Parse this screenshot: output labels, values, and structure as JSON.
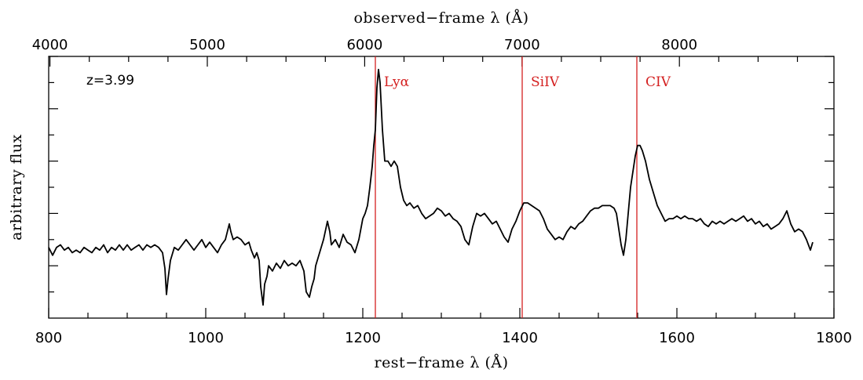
{
  "chart_data": {
    "type": "line",
    "top_axis_label": "observed−frame λ (Å)",
    "xlabel": "rest−frame λ (Å)",
    "ylabel": "arbitrary flux",
    "annotation": "z=3.99",
    "redshift": 3.99,
    "xlim": [
      800,
      1800
    ],
    "ylim": [
      0,
      1
    ],
    "x_ticks": [
      800,
      1000,
      1200,
      1400,
      1600,
      1800
    ],
    "x_tick_labels": [
      "800",
      "1000",
      "1200",
      "1400",
      "1600",
      "1800"
    ],
    "top_ticks": [
      4000,
      5000,
      6000,
      7000,
      8000
    ],
    "top_tick_labels": [
      "4000",
      "5000",
      "6000",
      "7000",
      "8000"
    ],
    "emission_lines": [
      {
        "name": "Lyα",
        "x": 1216
      },
      {
        "name": "SiIV",
        "x": 1403
      },
      {
        "name": "CIV",
        "x": 1549
      }
    ],
    "line_color": "#d42020",
    "spectrum_color": "#000000",
    "series": [
      {
        "x": [
          800,
          805,
          810,
          815,
          820,
          825,
          830,
          835,
          840,
          845,
          850,
          855,
          860,
          865,
          870,
          875,
          880,
          885,
          890,
          895,
          900,
          905,
          910,
          915,
          920,
          925,
          930,
          935,
          940,
          945,
          948,
          950,
          952,
          955,
          958,
          960,
          965,
          970,
          975,
          980,
          985,
          990,
          995,
          1000,
          1005,
          1010,
          1015,
          1020,
          1025,
          1030,
          1032,
          1035,
          1040,
          1045,
          1050,
          1055,
          1058,
          1062,
          1065,
          1068,
          1070,
          1073,
          1075,
          1078,
          1080,
          1085,
          1090,
          1095,
          1100,
          1105,
          1110,
          1115,
          1120,
          1125,
          1128,
          1132,
          1135,
          1138,
          1140,
          1145,
          1150,
          1155,
          1158,
          1160,
          1165,
          1170,
          1175,
          1180,
          1185,
          1190,
          1195,
          1200,
          1203,
          1206,
          1209,
          1212,
          1214,
          1216,
          1218,
          1220,
          1222,
          1225,
          1228,
          1232,
          1236,
          1240,
          1244,
          1248,
          1252,
          1256,
          1260,
          1265,
          1270,
          1275,
          1280,
          1285,
          1290,
          1295,
          1300,
          1305,
          1310,
          1315,
          1320,
          1325,
          1330,
          1335,
          1340,
          1345,
          1350,
          1355,
          1360,
          1365,
          1370,
          1375,
          1380,
          1385,
          1390,
          1395,
          1400,
          1405,
          1410,
          1415,
          1420,
          1425,
          1430,
          1435,
          1440,
          1445,
          1450,
          1455,
          1460,
          1465,
          1470,
          1475,
          1480,
          1485,
          1490,
          1495,
          1500,
          1505,
          1510,
          1515,
          1520,
          1523,
          1526,
          1529,
          1532,
          1535,
          1538,
          1541,
          1544,
          1547,
          1550,
          1553,
          1556,
          1560,
          1565,
          1570,
          1575,
          1580,
          1585,
          1590,
          1595,
          1600,
          1605,
          1610,
          1615,
          1620,
          1625,
          1630,
          1635,
          1640,
          1645,
          1650,
          1655,
          1660,
          1665,
          1670,
          1675,
          1680,
          1685,
          1690,
          1695,
          1700,
          1705,
          1710,
          1715,
          1720,
          1725,
          1730,
          1735,
          1740,
          1745,
          1750,
          1755,
          1760,
          1765,
          1770,
          1773
        ],
        "y": [
          0.27,
          0.24,
          0.27,
          0.28,
          0.26,
          0.27,
          0.25,
          0.26,
          0.25,
          0.27,
          0.26,
          0.25,
          0.27,
          0.26,
          0.28,
          0.25,
          0.27,
          0.26,
          0.28,
          0.26,
          0.28,
          0.26,
          0.27,
          0.28,
          0.26,
          0.28,
          0.27,
          0.28,
          0.27,
          0.25,
          0.19,
          0.09,
          0.15,
          0.22,
          0.25,
          0.27,
          0.26,
          0.28,
          0.3,
          0.28,
          0.26,
          0.28,
          0.3,
          0.27,
          0.29,
          0.27,
          0.25,
          0.28,
          0.3,
          0.36,
          0.33,
          0.3,
          0.31,
          0.3,
          0.28,
          0.29,
          0.26,
          0.23,
          0.25,
          0.22,
          0.12,
          0.05,
          0.13,
          0.16,
          0.2,
          0.18,
          0.21,
          0.19,
          0.22,
          0.2,
          0.21,
          0.2,
          0.22,
          0.18,
          0.1,
          0.08,
          0.12,
          0.15,
          0.2,
          0.25,
          0.3,
          0.37,
          0.33,
          0.28,
          0.3,
          0.27,
          0.32,
          0.29,
          0.28,
          0.25,
          0.3,
          0.38,
          0.4,
          0.43,
          0.5,
          0.58,
          0.66,
          0.72,
          0.88,
          0.95,
          0.9,
          0.72,
          0.6,
          0.6,
          0.58,
          0.6,
          0.58,
          0.5,
          0.45,
          0.43,
          0.44,
          0.42,
          0.43,
          0.4,
          0.38,
          0.39,
          0.4,
          0.42,
          0.41,
          0.39,
          0.4,
          0.38,
          0.37,
          0.35,
          0.3,
          0.28,
          0.35,
          0.4,
          0.39,
          0.4,
          0.38,
          0.36,
          0.37,
          0.34,
          0.31,
          0.29,
          0.34,
          0.37,
          0.41,
          0.44,
          0.44,
          0.43,
          0.42,
          0.41,
          0.38,
          0.34,
          0.32,
          0.3,
          0.31,
          0.3,
          0.33,
          0.35,
          0.34,
          0.36,
          0.37,
          0.39,
          0.41,
          0.42,
          0.42,
          0.43,
          0.43,
          0.43,
          0.42,
          0.4,
          0.34,
          0.28,
          0.24,
          0.3,
          0.4,
          0.5,
          0.56,
          0.62,
          0.66,
          0.66,
          0.64,
          0.6,
          0.53,
          0.48,
          0.43,
          0.4,
          0.37,
          0.38,
          0.38,
          0.39,
          0.38,
          0.39,
          0.38,
          0.38,
          0.37,
          0.38,
          0.36,
          0.35,
          0.37,
          0.36,
          0.37,
          0.36,
          0.37,
          0.38,
          0.37,
          0.38,
          0.39,
          0.37,
          0.38,
          0.36,
          0.37,
          0.35,
          0.36,
          0.34,
          0.35,
          0.36,
          0.38,
          0.41,
          0.36,
          0.33,
          0.34,
          0.33,
          0.3,
          0.26,
          0.29
        ]
      }
    ]
  }
}
